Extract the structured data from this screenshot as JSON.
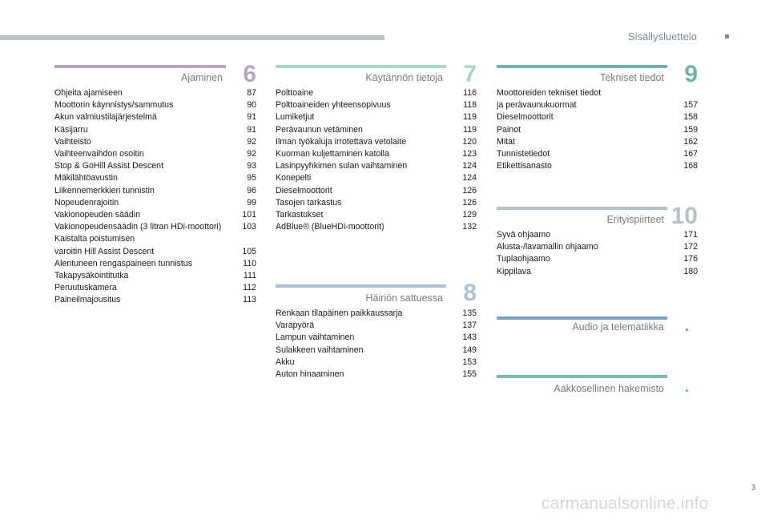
{
  "header": {
    "title": "Sisällysluettelo"
  },
  "page_number": "3",
  "watermark": "carmanualsonline.info",
  "colors": {
    "ajaminen": "#b7a6bd",
    "kaytannon": "#a6d8c2",
    "hairion": "#aebed4",
    "tekniset": "#6fb3ad",
    "erityis": "#b9c2c6",
    "audio": "#7fa0b8",
    "aakkos": "#7fb8b3"
  },
  "sections": {
    "ajaminen": {
      "title": "Ajaminen",
      "number": "6",
      "entries": [
        {
          "title": "Ohjeita ajamiseen",
          "page": "87"
        },
        {
          "title": "Moottorin käynnistys/sammutus",
          "page": "90"
        },
        {
          "title": "Akun valmiustilajärjestelmä",
          "page": "91"
        },
        {
          "title": "Käsijarru",
          "page": "91"
        },
        {
          "title": "Vaihteisto",
          "page": "92"
        },
        {
          "title": "Vaihteenvaihdon osoitin",
          "page": "92"
        },
        {
          "title": "Stop & GoHill Assist Descent",
          "page": "93"
        },
        {
          "title": "Mäkilähtöavustin",
          "page": "95"
        },
        {
          "title": "Liikennemerkkien tunnistin",
          "page": "96"
        },
        {
          "title": "Nopeudenrajoitin",
          "page": "99"
        },
        {
          "title": "Vakionopeuden säädin",
          "page": "101"
        },
        {
          "title": "Vakionopeudensäädin (3 litran HDi-moottori)",
          "page": "103"
        },
        {
          "title": "Kaistalta poistumisen\nvaroitin Hill Assist Descent",
          "page": "105"
        },
        {
          "title": "Alentuneen rengaspaineen tunnistus",
          "page": "110"
        },
        {
          "title": "Takapysäköintitutka",
          "page": "111"
        },
        {
          "title": "Peruutuskamera",
          "page": "112"
        },
        {
          "title": "Paineilmajousitus",
          "page": "113"
        }
      ]
    },
    "kaytannon": {
      "title": "Käytännön tietoja",
      "number": "7",
      "entries": [
        {
          "title": "Polttoaine",
          "page": "116"
        },
        {
          "title": "Polttoaineiden yhteensopivuus",
          "page": "118"
        },
        {
          "title": "Lumiketjut",
          "page": "119"
        },
        {
          "title": "Perävaunun vetäminen",
          "page": "119"
        },
        {
          "title": "Ilman työkaluja irrotettava vetolaite",
          "page": "120"
        },
        {
          "title": "Kuorman kuljettaminen katolla",
          "page": "123"
        },
        {
          "title": "Lasinpyyhkimen sulan vaihtaminen",
          "page": "124"
        },
        {
          "title": "Konepelti",
          "page": "124"
        },
        {
          "title": "Dieselmoottorit",
          "page": "126"
        },
        {
          "title": "Tasojen tarkastus",
          "page": "126"
        },
        {
          "title": "Tarkastukset",
          "page": "129"
        },
        {
          "title": "AdBlue® (BlueHDi-moottorit)",
          "page": "132"
        }
      ]
    },
    "hairion": {
      "title": "Häiriön sattuessa",
      "number": "8",
      "entries": [
        {
          "title": "Renkaan tilapäinen paikkaussarja",
          "page": "135"
        },
        {
          "title": "Varapyörä",
          "page": "137"
        },
        {
          "title": "Lampun vaihtaminen",
          "page": "143"
        },
        {
          "title": "Sulakkeen vaihtaminen",
          "page": "149"
        },
        {
          "title": "Akku",
          "page": "153"
        },
        {
          "title": "Auton hinaaminen",
          "page": "155"
        }
      ]
    },
    "tekniset": {
      "title": "Tekniset tiedot",
      "number": "9",
      "entries": [
        {
          "title": "Moottoreiden tekniset tiedot\nja perävaunukuormat",
          "page": "157"
        },
        {
          "title": "Dieselmoottorit",
          "page": "158"
        },
        {
          "title": "Painot",
          "page": "159"
        },
        {
          "title": "Mitat",
          "page": "162"
        },
        {
          "title": "Tunnistetiedot",
          "page": "167"
        },
        {
          "title": "Etikettisanasto",
          "page": "168"
        }
      ]
    },
    "erityis": {
      "title": "Erityispiirteet",
      "number": "10",
      "entries": [
        {
          "title": "Syvä ohjaamo",
          "page": "171"
        },
        {
          "title": "Alusta-/lavamallin ohjaamo",
          "page": "172"
        },
        {
          "title": "Tuplaohjaamo",
          "page": "176"
        },
        {
          "title": "Kippilava",
          "page": "180"
        }
      ]
    },
    "audio": {
      "title": "Audio ja telematiikka"
    },
    "aakkos": {
      "title": "Aakkosellinen hakemisto"
    }
  }
}
